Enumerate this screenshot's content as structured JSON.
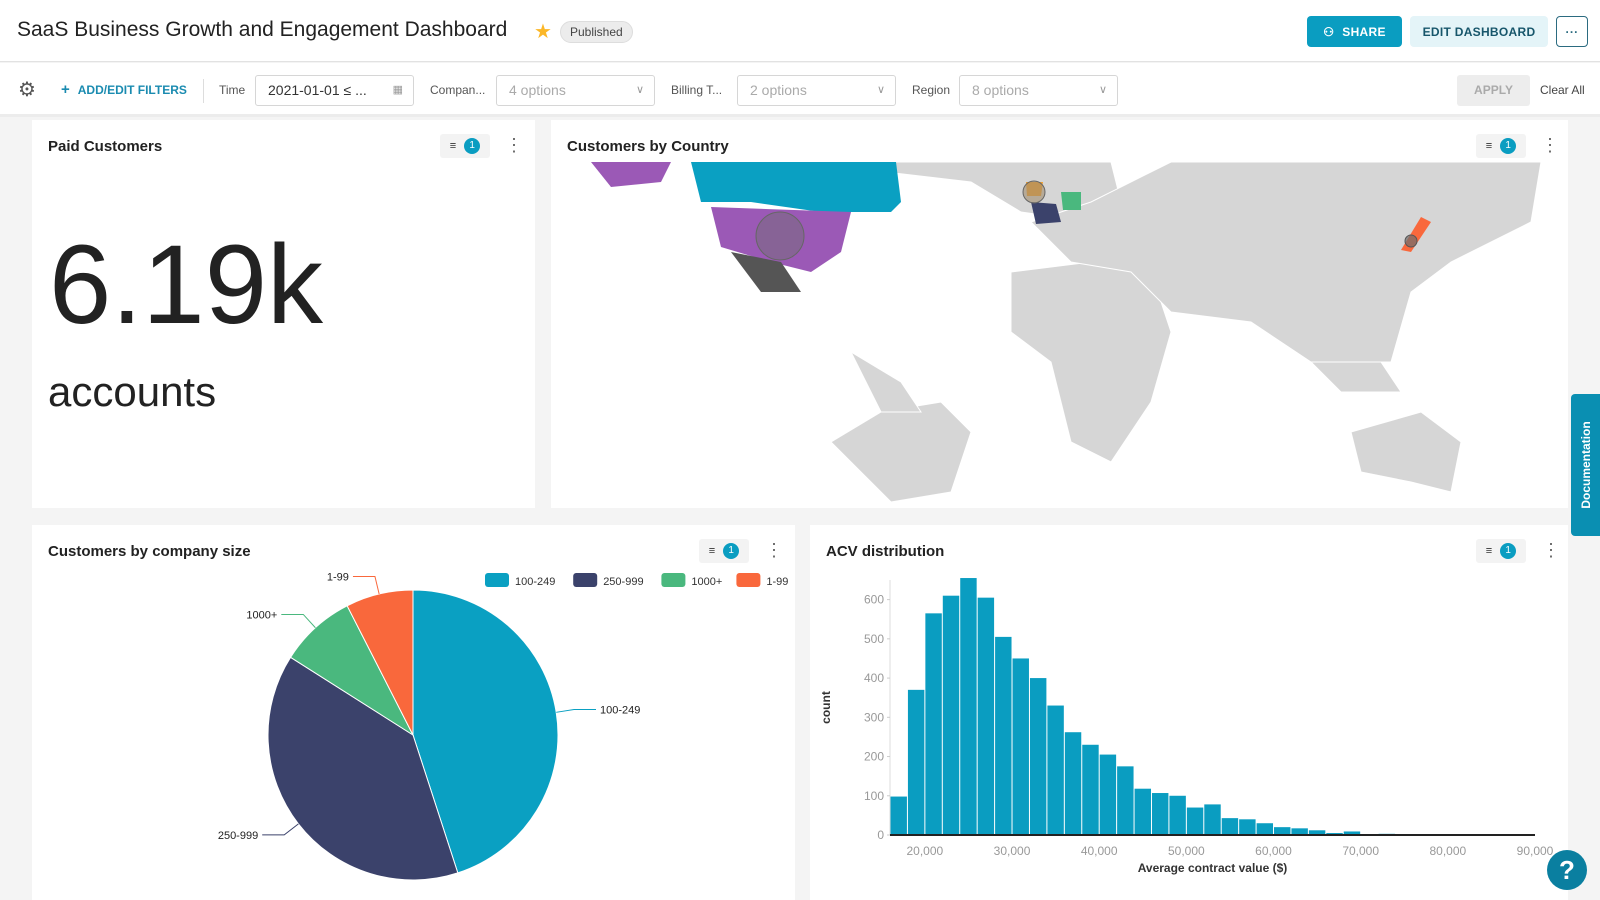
{
  "header": {
    "title": "SaaS Business Growth and Engagement Dashboard",
    "status": "Published",
    "share": "SHARE",
    "edit": "EDIT DASHBOARD",
    "more": "···"
  },
  "filters": {
    "add": "ADD/EDIT FILTERS",
    "time_label": "Time",
    "time_value": "2021-01-01 ≤ ...",
    "company_label": "Compan...",
    "company_value": "4 options",
    "billing_label": "Billing T...",
    "billing_value": "2 options",
    "region_label": "Region",
    "region_value": "8 options",
    "apply": "APPLY",
    "clear": "Clear All"
  },
  "cards": {
    "paid": {
      "title": "Paid Customers",
      "value": "6.19k",
      "unit": "accounts",
      "filter_count": "1"
    },
    "map": {
      "title": "Customers by Country",
      "filter_count": "1"
    },
    "pie": {
      "title": "Customers by company size",
      "filter_count": "1"
    },
    "acv": {
      "title": "ACV distribution",
      "filter_count": "1"
    }
  },
  "documentation": "Documentation",
  "help": "?",
  "colors": {
    "accent": "#0a9dc1",
    "c100": "#0aa0c2",
    "c250": "#3b426b",
    "c1000": "#4ab87e",
    "c1": "#f9683c"
  },
  "chart_data": [
    {
      "type": "pie",
      "legend_position": "top-right",
      "categories": [
        "100-249",
        "250-999",
        "1000+",
        "1-99"
      ],
      "values": [
        45,
        39,
        8.5,
        7.5
      ]
    },
    {
      "type": "bar",
      "xlabel": "Average contract value ($)",
      "ylabel": "count",
      "xlim": [
        16000,
        90000
      ],
      "ylim": [
        0,
        650
      ],
      "x_ticks": [
        "20,000",
        "30,000",
        "40,000",
        "50,000",
        "60,000",
        "70,000",
        "80,000",
        "90,000"
      ],
      "y_ticks": [
        "0",
        "100",
        "200",
        "300",
        "400",
        "500",
        "600"
      ],
      "bin_width": 2000,
      "bin_starts": [
        16000,
        18000,
        20000,
        22000,
        24000,
        26000,
        28000,
        30000,
        32000,
        34000,
        36000,
        38000,
        40000,
        42000,
        44000,
        46000,
        48000,
        50000,
        52000,
        54000,
        56000,
        58000,
        60000,
        62000,
        64000,
        66000,
        68000,
        70000,
        72000
      ],
      "values": [
        98,
        370,
        565,
        610,
        655,
        605,
        505,
        450,
        400,
        330,
        262,
        230,
        205,
        175,
        118,
        107,
        100,
        70,
        78,
        43,
        40,
        30,
        20,
        17,
        12,
        5,
        9,
        1,
        3
      ]
    }
  ]
}
